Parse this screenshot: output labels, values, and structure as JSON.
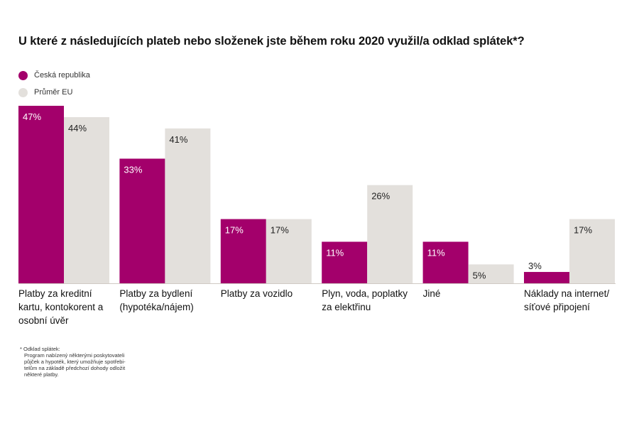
{
  "chart_data": {
    "type": "bar",
    "title": "U které z následujících plateb nebo složenek jste během roku 2020 využil/a odklad splátek*?",
    "categories": [
      "Platby za kreditní\nkartu, kontokorent a\nosobní úvěr",
      "Platby za bydlení\n(hypotéka/nájem)",
      "Platby za vozidlo",
      "Plyn, voda, poplatky\nza elektřinu",
      "Jiné",
      "Náklady na internet/\nsíťové připojení"
    ],
    "series": [
      {
        "name": "Česká republika",
        "color": "#a3006b",
        "values": [
          47,
          33,
          17,
          11,
          11,
          3
        ]
      },
      {
        "name": "Průměr EU",
        "color": "#e3e0dc",
        "values": [
          44,
          41,
          17,
          26,
          5,
          17
        ]
      }
    ],
    "value_suffix": "%",
    "ylim": [
      0,
      47
    ],
    "grid": false,
    "legend": "top-left"
  },
  "footnote": {
    "heading": "* Odklad splátek:",
    "text": "Program nabízený některými poskytovateli\npůjček a hypoték, který umožňuje spotřebi-\ntelům na základě předchozí dohody odložit\nněkteré platby."
  }
}
